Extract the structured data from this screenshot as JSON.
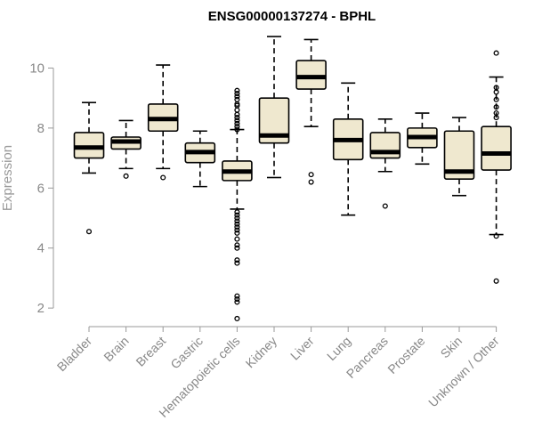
{
  "chart_data": {
    "type": "boxplot",
    "title": "ENSG00000137274 - BPHL",
    "ylabel": "Expression",
    "ylim": [
      1.5,
      11.2
    ],
    "yticks": [
      2,
      4,
      6,
      8,
      10
    ],
    "box_color": "#efe8cf",
    "categories": [
      "Bladder",
      "Brain",
      "Breast",
      "Gastric",
      "Hematopoietic cells",
      "Kidney",
      "Liver",
      "Lung",
      "Pancreas",
      "Prostate",
      "Skin",
      "Unknown / Other"
    ],
    "boxes": [
      {
        "whisker_low": 6.5,
        "q1": 7.0,
        "median": 7.35,
        "q3": 7.85,
        "whisker_high": 8.85,
        "outliers": [
          4.55
        ]
      },
      {
        "whisker_low": 6.65,
        "q1": 7.3,
        "median": 7.55,
        "q3": 7.7,
        "whisker_high": 8.25,
        "outliers": [
          6.4
        ]
      },
      {
        "whisker_low": 6.65,
        "q1": 7.9,
        "median": 8.3,
        "q3": 8.8,
        "whisker_high": 10.1,
        "outliers": [
          6.35
        ]
      },
      {
        "whisker_low": 6.05,
        "q1": 6.85,
        "median": 7.2,
        "q3": 7.5,
        "whisker_high": 7.9,
        "outliers": []
      },
      {
        "whisker_low": 5.3,
        "q1": 6.25,
        "median": 6.55,
        "q3": 6.9,
        "whisker_high": 7.95,
        "outliers": [
          9.25,
          9.15,
          9.05,
          8.95,
          8.8,
          8.75,
          8.6,
          8.45,
          8.35,
          8.25,
          8.15,
          8.05,
          7.95,
          5.2,
          5.1,
          5.0,
          4.9,
          4.8,
          4.7,
          4.6,
          4.5,
          4.3,
          4.1,
          4.0,
          3.6,
          3.5,
          2.4,
          2.3,
          2.2,
          1.65
        ]
      },
      {
        "whisker_low": 6.35,
        "q1": 7.5,
        "median": 7.75,
        "q3": 9.0,
        "whisker_high": 11.05,
        "outliers": []
      },
      {
        "whisker_low": 8.05,
        "q1": 9.3,
        "median": 9.7,
        "q3": 10.25,
        "whisker_high": 10.95,
        "outliers": [
          6.45,
          6.2
        ]
      },
      {
        "whisker_low": 5.1,
        "q1": 6.95,
        "median": 7.6,
        "q3": 8.3,
        "whisker_high": 9.5,
        "outliers": []
      },
      {
        "whisker_low": 6.55,
        "q1": 7.0,
        "median": 7.2,
        "q3": 7.85,
        "whisker_high": 8.3,
        "outliers": [
          5.4
        ]
      },
      {
        "whisker_low": 6.8,
        "q1": 7.35,
        "median": 7.7,
        "q3": 8.0,
        "whisker_high": 8.5,
        "outliers": []
      },
      {
        "whisker_low": 5.75,
        "q1": 6.3,
        "median": 6.55,
        "q3": 7.9,
        "whisker_high": 8.35,
        "outliers": []
      },
      {
        "whisker_low": 4.45,
        "q1": 6.6,
        "median": 7.15,
        "q3": 8.05,
        "whisker_high": 9.7,
        "outliers": [
          10.5,
          9.35,
          9.2,
          8.95,
          8.7,
          8.5,
          8.35,
          4.4,
          2.9
        ]
      }
    ]
  }
}
